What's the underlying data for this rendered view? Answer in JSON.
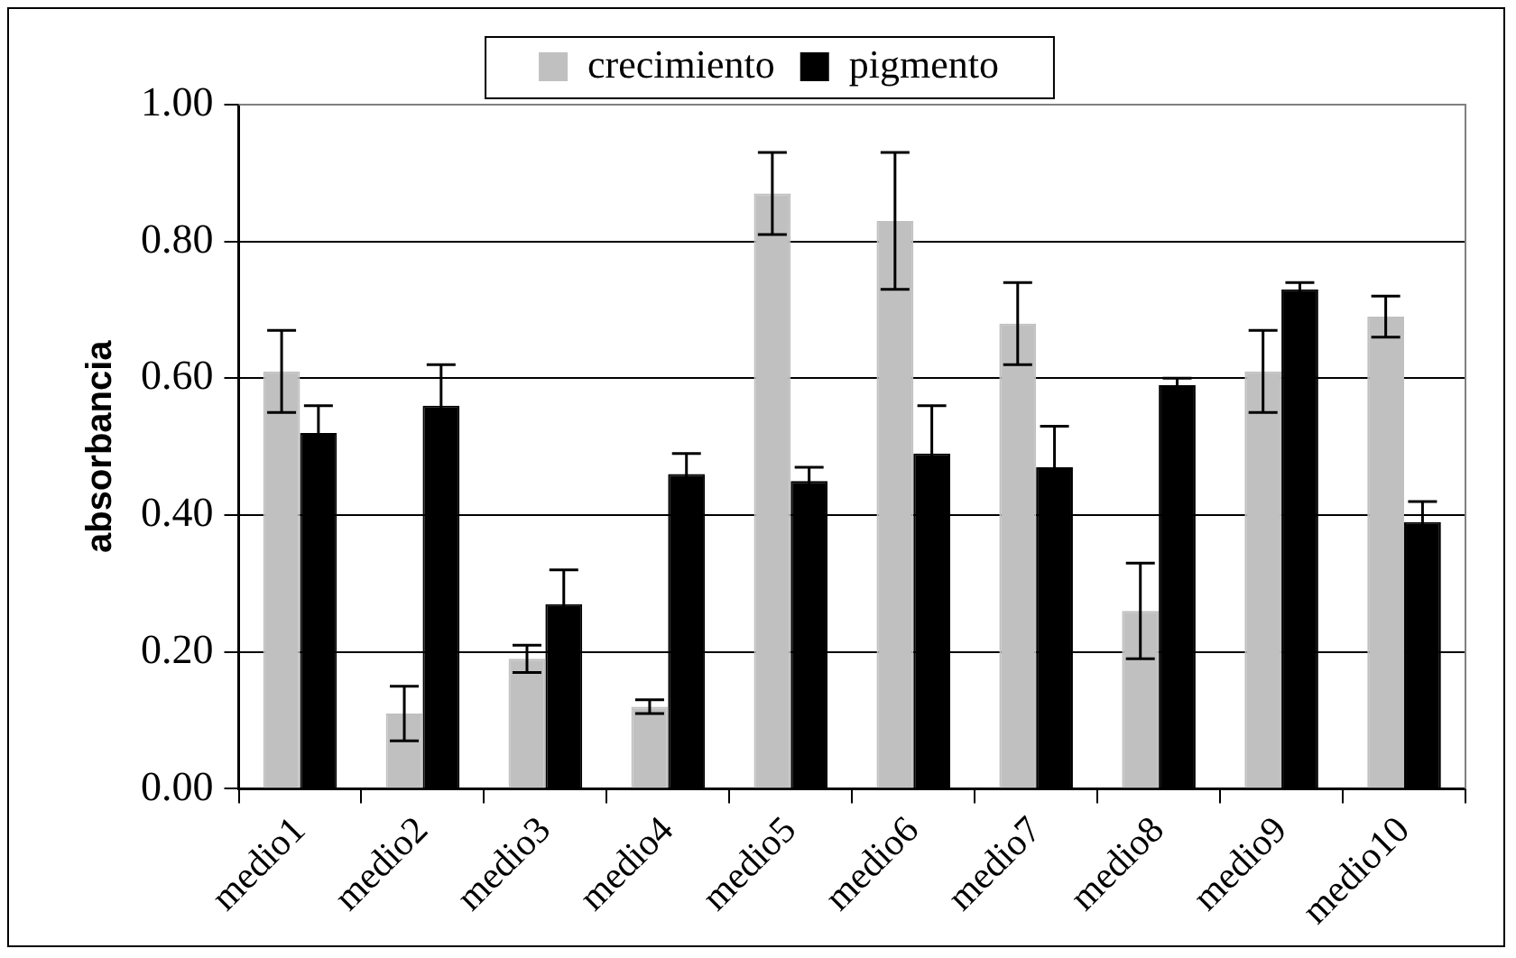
{
  "chart_data": {
    "type": "bar",
    "ylabel": "absorbancia",
    "categories": [
      "medio1",
      "medio2",
      "medio3",
      "medio4",
      "medio5",
      "medio6",
      "medio7",
      "medio8",
      "medio9",
      "medio10"
    ],
    "series": [
      {
        "name": "crecimiento",
        "color": "#c0c0c0",
        "values": [
          0.61,
          0.11,
          0.19,
          0.12,
          0.87,
          0.83,
          0.68,
          0.26,
          0.61,
          0.69
        ],
        "errors": [
          0.06,
          0.04,
          0.02,
          0.01,
          0.06,
          0.1,
          0.06,
          0.07,
          0.06,
          0.03
        ]
      },
      {
        "name": "pigmento",
        "color": "#000000",
        "values": [
          0.52,
          0.56,
          0.27,
          0.46,
          0.45,
          0.49,
          0.47,
          0.59,
          0.73,
          0.39
        ],
        "errors": [
          0.04,
          0.06,
          0.05,
          0.03,
          0.02,
          0.07,
          0.06,
          0.01,
          0.01,
          0.03
        ]
      }
    ],
    "ylim": [
      0,
      1
    ],
    "yticks": [
      {
        "value": 0,
        "label": "0.00"
      },
      {
        "value": 0.2,
        "label": "0.20"
      },
      {
        "value": 0.4,
        "label": "0.40"
      },
      {
        "value": 0.6,
        "label": "0.60"
      },
      {
        "value": 0.8,
        "label": "0.80"
      },
      {
        "value": 1,
        "label": "1.00"
      }
    ],
    "grid": "y",
    "legend": "top"
  }
}
